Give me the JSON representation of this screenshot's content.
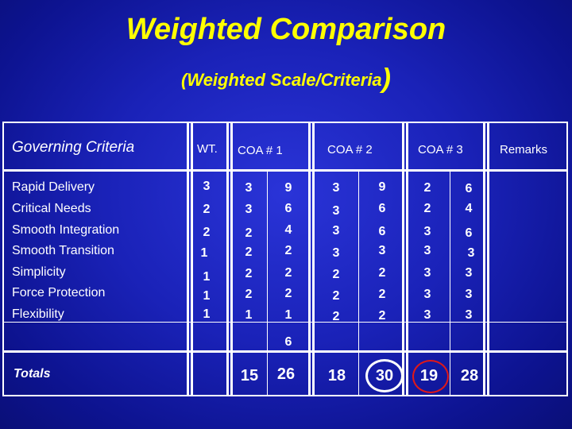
{
  "title": "Weighted Comparison",
  "subtitle": "(Weighted Scale/Criteria",
  "subtitle_paren": ")",
  "headers": {
    "criteria": "Governing Criteria",
    "weight": "WT.",
    "coa1": "COA # 1",
    "coa2": "COA # 2",
    "coa3": "COA # 3",
    "remarks": "Remarks"
  },
  "rows": [
    {
      "label": "Rapid Delivery",
      "wt": "3",
      "c1s": "3",
      "c1w": "9",
      "c2s": "3",
      "c2w": "9",
      "c3s": "2",
      "c3w": "6"
    },
    {
      "label": "Critical Needs",
      "wt": "2",
      "c1s": "3",
      "c1w": "6",
      "c2s": "3",
      "c2w": "6",
      "c3s": "2",
      "c3w": "4"
    },
    {
      "label": "Smooth Integration",
      "wt": "2",
      "c1s": "2",
      "c1w": "4",
      "c2s": "3",
      "c2w": "6",
      "c3s": "3",
      "c3w": "6"
    },
    {
      "label": "Smooth Transition",
      "wt": "1",
      "c1s": "2",
      "c1w": "2",
      "c2s": "3",
      "c2w": "3",
      "c3s": "3",
      "c3w": "3"
    },
    {
      "label": "Simplicity",
      "wt": "1",
      "c1s": "2",
      "c1w": "2",
      "c2s": "2",
      "c2w": "2",
      "c3s": "3",
      "c3w": "3"
    },
    {
      "label": "Force Protection",
      "wt": "1",
      "c1s": "2",
      "c1w": "2",
      "c2s": "2",
      "c2w": "2",
      "c3s": "3",
      "c3w": "3"
    },
    {
      "label": "Flexibility",
      "wt": "1",
      "c1s": "1",
      "c1w": "1",
      "c2s": "2",
      "c2w": "2",
      "c3s": "3",
      "c3w": "3"
    }
  ],
  "extra_row_value": "6",
  "totals": {
    "label": "Totals",
    "c1s": "15",
    "c1w": "26",
    "c2s": "18",
    "c2w": "30",
    "c3s": "19",
    "c3w": "28"
  },
  "colors": {
    "title": "#ffff00",
    "circle_white": "#ffffff",
    "circle_red": "#e01818"
  }
}
